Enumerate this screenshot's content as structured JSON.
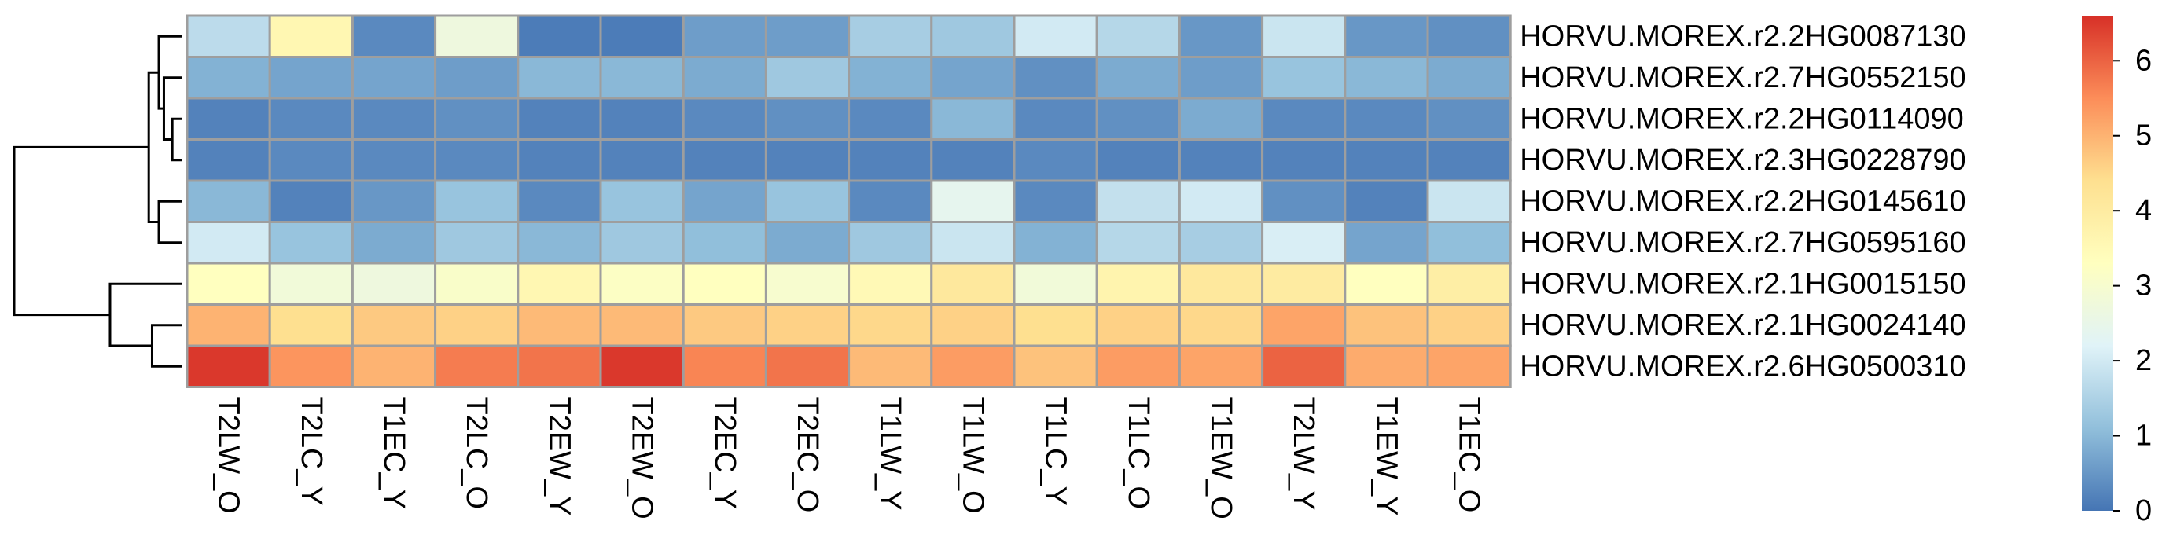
{
  "chart_data": {
    "type": "heatmap",
    "title": "",
    "xlabel": "",
    "ylabel": "",
    "rows": [
      "HORVU.MOREX.r2.2HG0087130",
      "HORVU.MOREX.r2.7HG0552150",
      "HORVU.MOREX.r2.2HG0114090",
      "HORVU.MOREX.r2.3HG0228790",
      "HORVU.MOREX.r2.2HG0145610",
      "HORVU.MOREX.r2.7HG0595160",
      "HORVU.MOREX.r2.1HG0015150",
      "HORVU.MOREX.r2.1HG0024140",
      "HORVU.MOREX.r2.6HG0500310"
    ],
    "columns": [
      "T2LW_O",
      "T2LC_Y",
      "T1EC_Y",
      "T2LC_O",
      "T2EW_Y",
      "T2EW_O",
      "T2EC_Y",
      "T2EC_O",
      "T1LW_Y",
      "T1LW_O",
      "T1LC_Y",
      "T1LC_O",
      "T1EW_O",
      "T2LW_Y",
      "T1EW_Y",
      "T1EC_O"
    ],
    "values": [
      [
        1.7,
        3.6,
        0.3,
        2.7,
        0.1,
        0.1,
        0.6,
        0.6,
        1.4,
        1.3,
        2.0,
        1.6,
        0.5,
        1.9,
        0.5,
        0.4
      ],
      [
        0.9,
        0.7,
        0.7,
        0.6,
        1.0,
        1.0,
        0.8,
        1.3,
        0.9,
        0.7,
        0.4,
        0.8,
        0.6,
        1.2,
        1.0,
        0.8
      ],
      [
        0.2,
        0.3,
        0.3,
        0.4,
        0.2,
        0.2,
        0.3,
        0.4,
        0.3,
        1.0,
        0.3,
        0.4,
        0.8,
        0.3,
        0.3,
        0.4
      ],
      [
        0.2,
        0.3,
        0.3,
        0.3,
        0.2,
        0.2,
        0.2,
        0.2,
        0.2,
        0.2,
        0.3,
        0.2,
        0.2,
        0.2,
        0.2,
        0.2
      ],
      [
        1.0,
        0.2,
        0.5,
        1.2,
        0.3,
        1.2,
        0.7,
        1.2,
        0.3,
        2.4,
        0.3,
        1.8,
        2.0,
        0.4,
        0.2,
        1.9
      ],
      [
        2.0,
        1.2,
        0.8,
        1.3,
        1.0,
        1.3,
        1.1,
        0.8,
        1.3,
        1.9,
        0.9,
        1.6,
        1.4,
        2.1,
        0.7,
        1.1
      ],
      [
        3.3,
        2.8,
        2.7,
        3.1,
        3.6,
        3.2,
        3.3,
        3.0,
        3.5,
        4.1,
        2.8,
        3.7,
        4.1,
        4.0,
        3.3,
        3.9
      ],
      [
        5.0,
        4.4,
        4.7,
        4.6,
        4.9,
        4.9,
        4.7,
        4.6,
        4.5,
        4.6,
        4.4,
        4.6,
        4.5,
        5.2,
        4.8,
        4.6
      ],
      [
        6.5,
        5.4,
        5.0,
        5.7,
        5.8,
        6.5,
        5.6,
        5.8,
        4.9,
        5.3,
        4.8,
        5.3,
        5.2,
        6.0,
        5.1,
        5.2
      ]
    ],
    "color_scale": {
      "min": 0,
      "max": 6.6,
      "stops": [
        "#4575B4",
        "#91BFDB",
        "#E0F3F8",
        "#FFFFBF",
        "#FEE090",
        "#FC8D59",
        "#D73027"
      ],
      "ticks": [
        "0",
        "1",
        "2",
        "3",
        "4",
        "5",
        "6"
      ]
    },
    "row_dendrogram": [
      {
        "a": 2,
        "b": 3,
        "h": 0.06
      },
      {
        "a": 1,
        "b": "m0",
        "h": 0.11
      },
      {
        "a": 0,
        "b": "m1",
        "h": 0.14
      },
      {
        "a": 4,
        "b": 5,
        "h": 0.14
      },
      {
        "a": "m2",
        "b": "m3",
        "h": 0.2
      },
      {
        "a": 7,
        "b": 8,
        "h": 0.18
      },
      {
        "a": 6,
        "b": "m5",
        "h": 0.43
      },
      {
        "a": "m4",
        "b": "m6",
        "h": 1.0
      }
    ],
    "grid": true,
    "legend": "right"
  }
}
